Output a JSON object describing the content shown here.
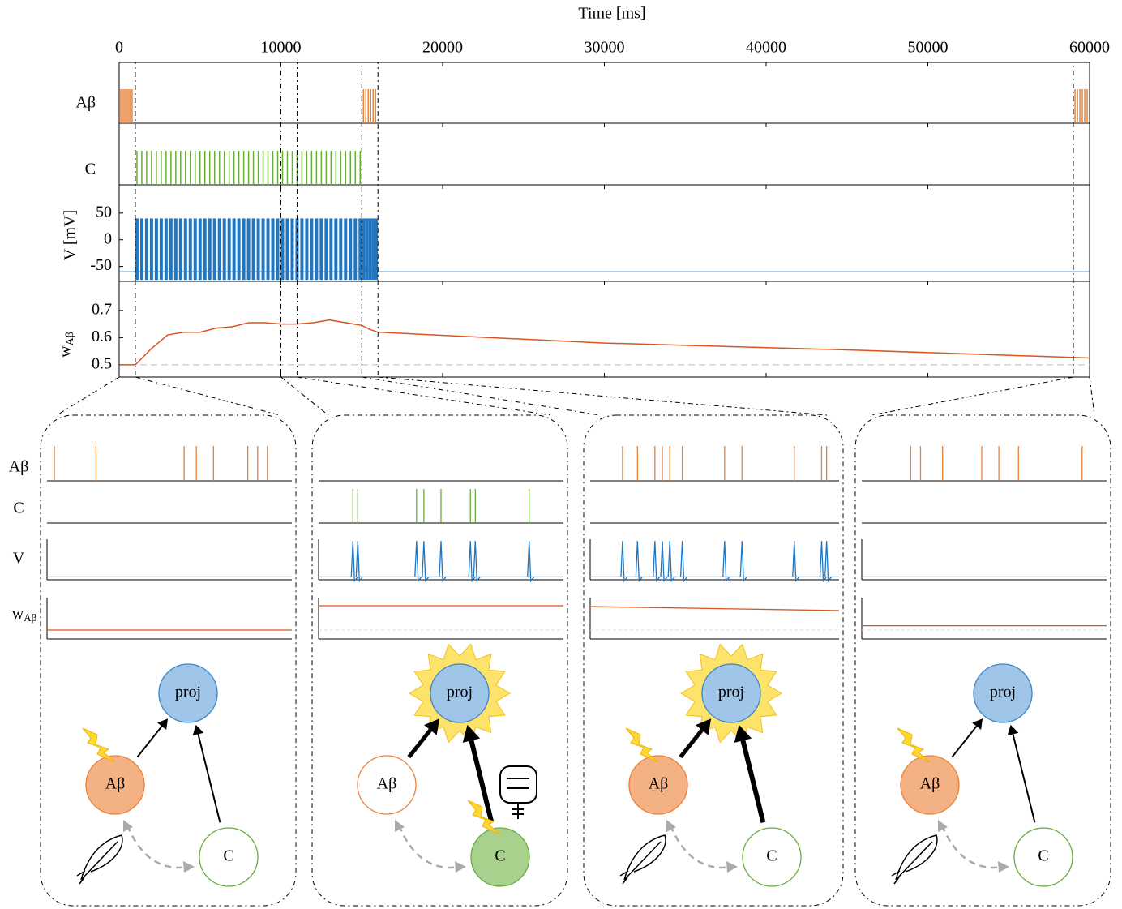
{
  "chart_data": {
    "type": "raster",
    "xlabel": "Time [ms]",
    "xlim": [
      0,
      60000
    ],
    "xticks": [
      0,
      10000,
      20000,
      30000,
      40000,
      50000,
      60000
    ],
    "rows": [
      {
        "label": "Aβ",
        "color": "#e8823a",
        "spikes": [
          100,
          200,
          300,
          400,
          500,
          600,
          700,
          800,
          15100,
          15250,
          15400,
          15550,
          15700,
          15850,
          59100,
          59250,
          59400,
          59550,
          59700,
          59850
        ]
      },
      {
        "label": "C",
        "color": "#6aab3f",
        "spikes": [
          1100,
          1400,
          1700,
          2000,
          2300,
          2600,
          2900,
          3200,
          3500,
          3800,
          4100,
          4400,
          4700,
          5000,
          5300,
          5600,
          5900,
          6200,
          6500,
          6800,
          7100,
          7400,
          7700,
          8000,
          8300,
          8600,
          8900,
          9200,
          9500,
          9800,
          10100,
          10400,
          10700,
          11000,
          11300,
          11600,
          11900,
          12200,
          12500,
          12800,
          13100,
          13400,
          13700,
          14000,
          14300,
          14600,
          14900
        ]
      }
    ],
    "voltage": {
      "label": "V [mV]",
      "color": "#1f77c4",
      "ylim": [
        -78,
        103
      ],
      "yticks": [
        -50,
        0,
        50
      ],
      "rest": -60,
      "peak": 40,
      "spikes": [
        1100,
        1400,
        1700,
        2000,
        2300,
        2600,
        2900,
        3200,
        3500,
        3800,
        4100,
        4400,
        4700,
        5000,
        5300,
        5600,
        5900,
        6200,
        6500,
        6800,
        7100,
        7400,
        7700,
        8000,
        8300,
        8600,
        8900,
        9200,
        9500,
        9800,
        10100,
        10400,
        10700,
        11000,
        11300,
        11600,
        11900,
        12200,
        12500,
        12800,
        13100,
        13400,
        13700,
        14000,
        14300,
        14600,
        14900,
        15100,
        15300,
        15500,
        15700,
        15900
      ]
    },
    "weight": {
      "label": "w",
      "label_sub": "Aβ",
      "color": "#d9541e",
      "ylim": [
        0.455,
        0.807
      ],
      "yticks": [
        0.5,
        0.6,
        0.7
      ],
      "baseline": 0.5,
      "x": [
        0,
        1000,
        1500,
        2000,
        3000,
        4000,
        5000,
        6000,
        7000,
        8000,
        9000,
        10000,
        11000,
        12000,
        13000,
        14000,
        15000,
        15500,
        16000,
        30000,
        45000,
        60000
      ],
      "values": [
        0.5,
        0.5,
        0.53,
        0.56,
        0.61,
        0.62,
        0.62,
        0.635,
        0.64,
        0.655,
        0.655,
        0.65,
        0.65,
        0.655,
        0.665,
        0.655,
        0.645,
        0.63,
        0.62,
        0.58,
        0.555,
        0.525
      ]
    },
    "inset_labels": [
      "Aβ",
      "C",
      "V",
      "w",
      "Aβ"
    ],
    "inset_vlim": [
      -68,
      45
    ],
    "inset_wlim": [
      0.445,
      0.7
    ],
    "insets": [
      {
        "xlim": [
          0,
          1000
        ],
        "ab": [
          30,
          200,
          560,
          610,
          680,
          820,
          860,
          900
        ],
        "c": [],
        "v": [],
        "w": [
          0.5,
          0.5
        ]
      },
      {
        "xlim": [
          10000,
          11000
        ],
        "ab": [],
        "c": [
          10140,
          10160,
          10400,
          10430,
          10500,
          10620,
          10640,
          10860
        ],
        "v": [
          10140,
          10160,
          10400,
          10430,
          10500,
          10620,
          10640,
          10860
        ],
        "w": [
          0.65,
          0.65
        ]
      },
      {
        "xlim": [
          15000,
          16000
        ],
        "ab": [
          15130,
          15190,
          15260,
          15290,
          15320,
          15370,
          15540,
          15610,
          15820,
          15930,
          15950
        ],
        "c": [],
        "v": [
          15130,
          15190,
          15260,
          15290,
          15320,
          15370,
          15540,
          15610,
          15820,
          15930,
          15950
        ],
        "w": [
          0.645,
          0.62
        ]
      },
      {
        "xlim": [
          59000,
          60000
        ],
        "ab": [
          59200,
          59240,
          59330,
          59490,
          59560,
          59640,
          59900
        ],
        "c": [],
        "v": [],
        "w": [
          0.527,
          0.527
        ]
      }
    ]
  },
  "diagram": {
    "nodes": [
      "proj",
      "Aβ",
      "C"
    ]
  }
}
